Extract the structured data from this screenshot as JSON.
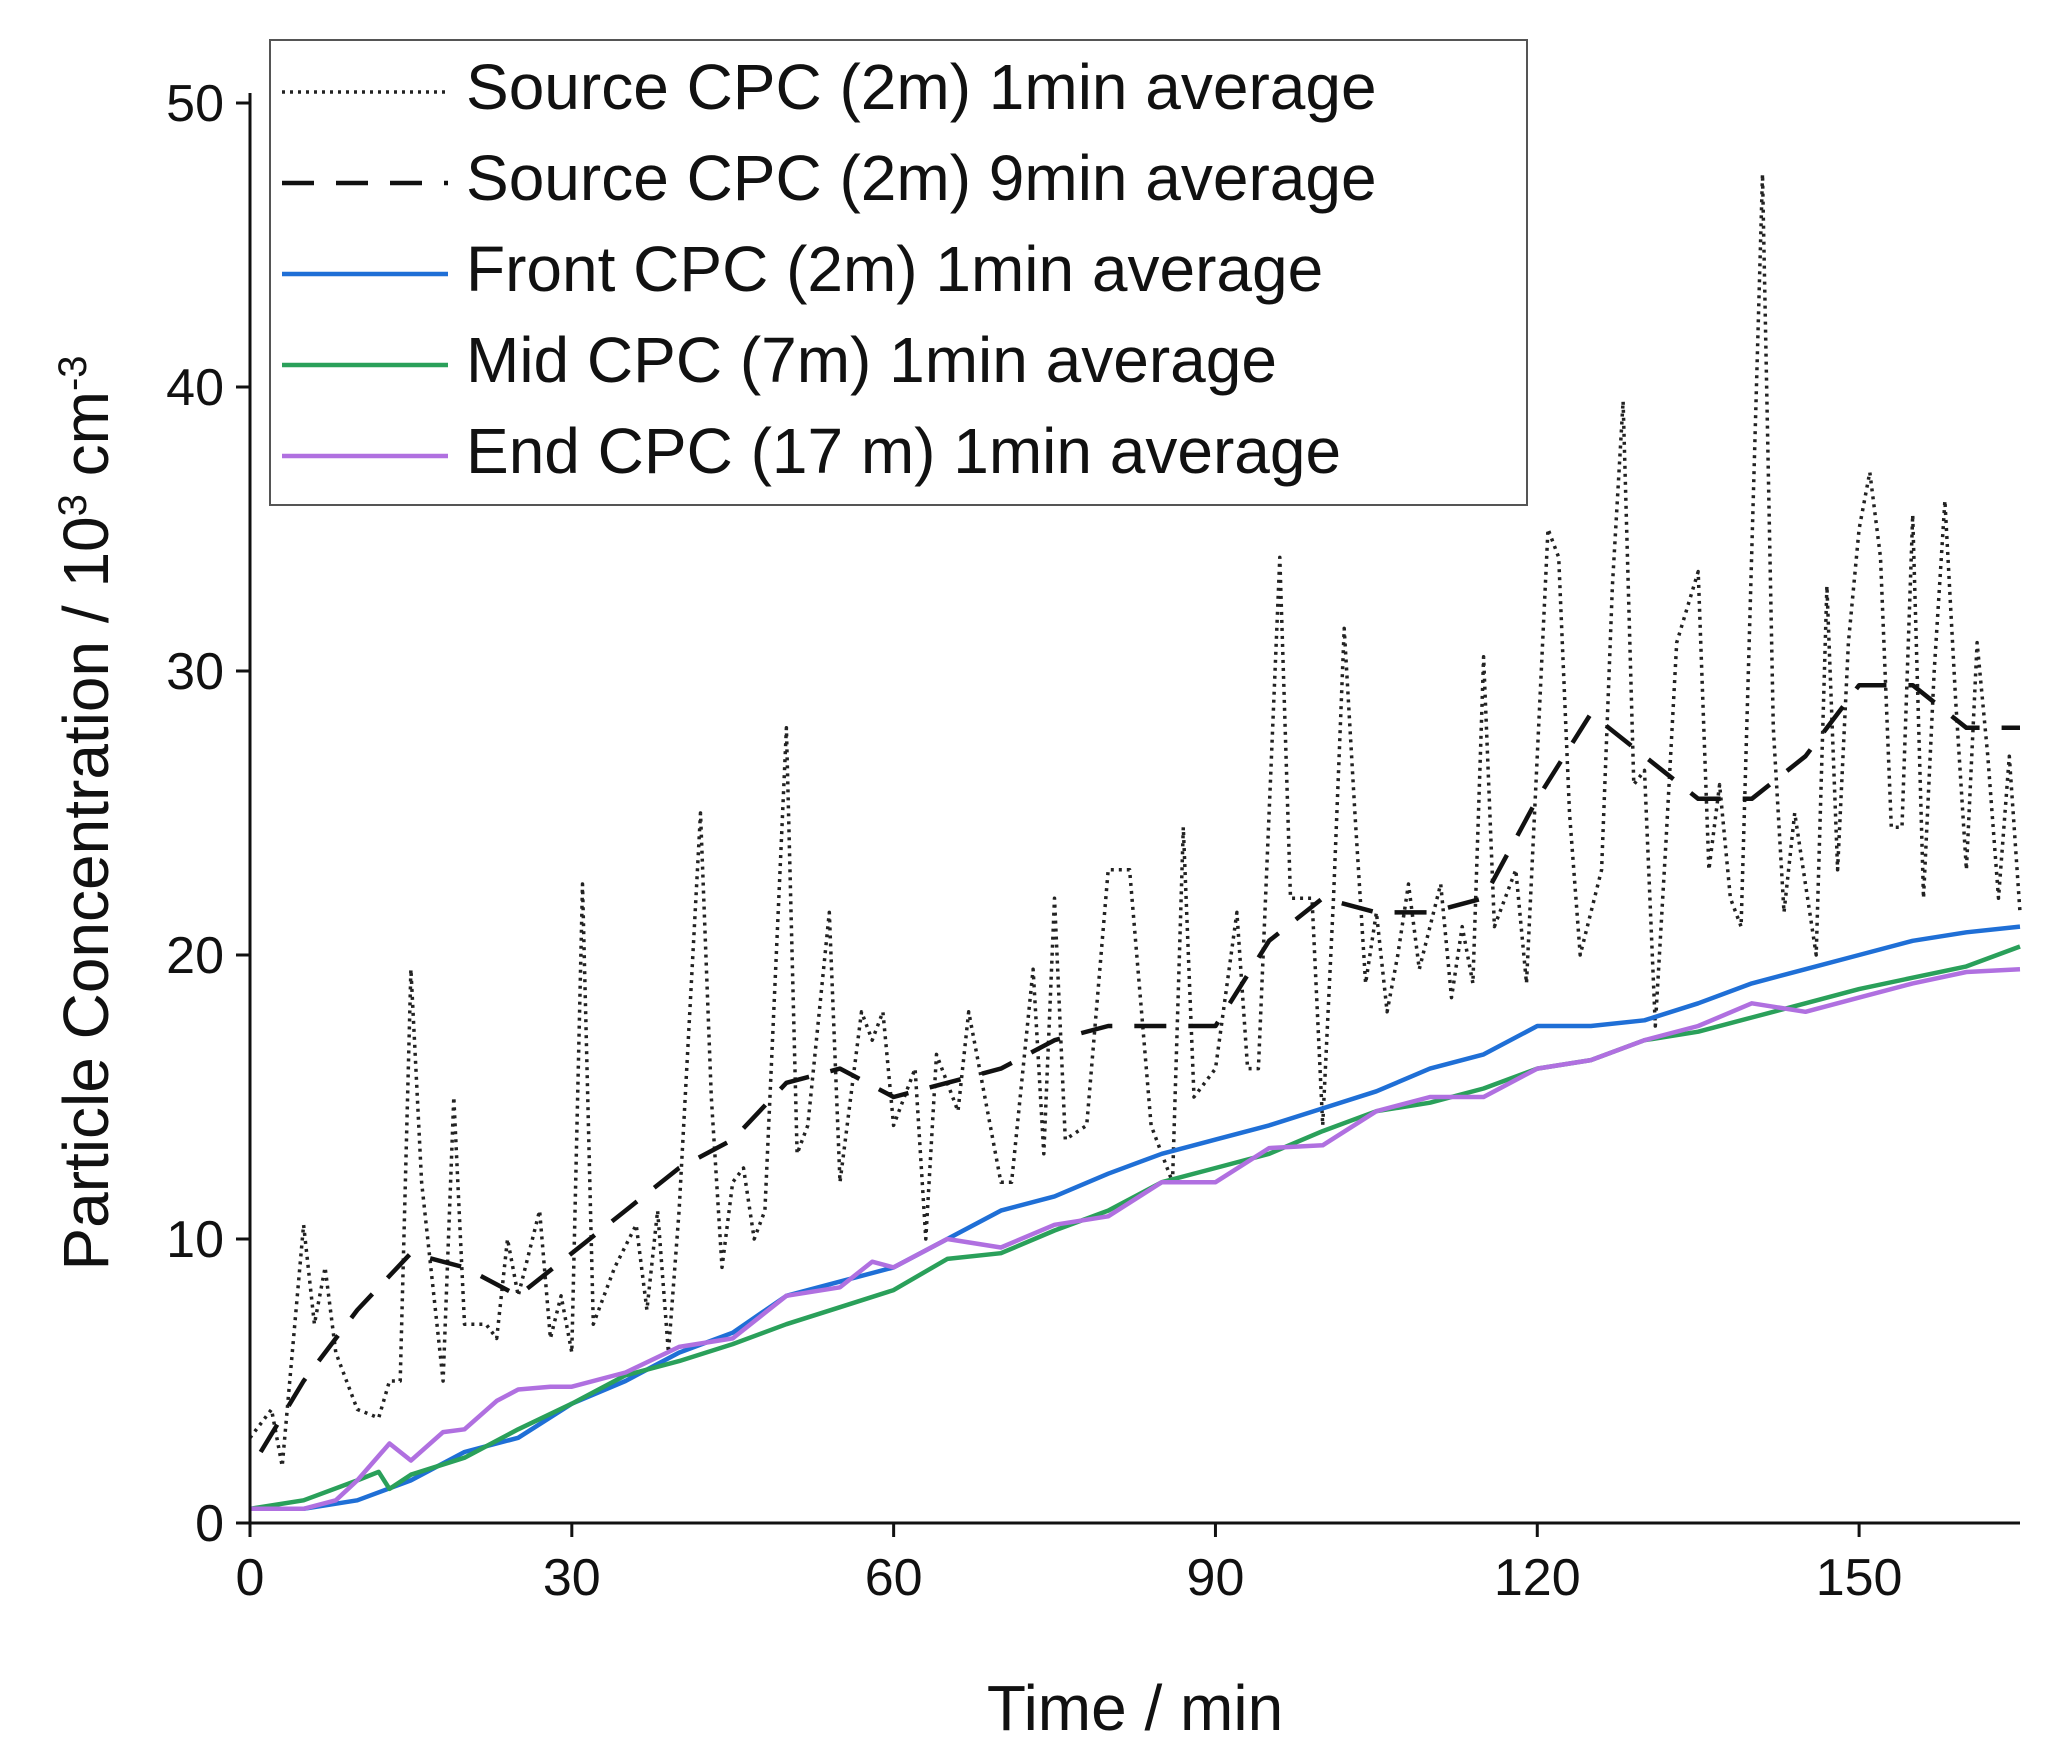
{
  "chart_data": {
    "type": "line",
    "xlabel": "Time / min",
    "ylabel": [
      "Particle Concentration / 10",
      "3",
      " cm",
      "-3"
    ],
    "xlim": [
      0,
      165
    ],
    "xticks": [
      0,
      30,
      60,
      90,
      120,
      150
    ],
    "ylim": [
      0,
      50
    ],
    "yticks": [
      0,
      10,
      20,
      30,
      40,
      50
    ],
    "legend": "top-left",
    "series": [
      {
        "name": "Source CPC (2m) 1min average",
        "color": "#222222",
        "style": "dotted",
        "x": [
          0,
          2,
          3,
          5,
          6,
          7,
          8,
          10,
          12,
          13,
          14,
          15,
          16,
          18,
          19,
          20,
          22,
          23,
          24,
          25,
          27,
          28,
          29,
          30,
          31,
          32,
          34,
          36,
          37,
          38,
          39,
          40,
          42,
          43,
          44,
          45,
          46,
          47,
          48,
          50,
          51,
          52,
          54,
          55,
          57,
          58,
          59,
          60,
          62,
          63,
          64,
          66,
          67,
          68,
          70,
          71,
          73,
          74,
          75,
          76,
          78,
          80,
          81,
          82,
          84,
          86,
          87,
          88,
          90,
          92,
          93,
          94,
          95,
          96,
          97,
          99,
          100,
          101,
          102,
          103,
          104,
          105,
          106,
          107,
          108,
          109,
          111,
          112,
          113,
          114,
          115,
          116,
          118,
          119,
          121,
          122,
          123,
          124,
          126,
          127,
          128,
          129,
          130,
          131,
          132,
          133,
          135,
          136,
          137,
          138,
          139,
          141,
          142,
          143,
          144,
          146,
          147,
          148,
          149,
          150,
          151,
          152,
          153,
          154,
          155,
          156,
          157,
          158,
          159,
          160,
          161,
          162,
          163,
          164,
          165
        ],
        "values": [
          3,
          4,
          2,
          10.5,
          7,
          9,
          6,
          4,
          3.7,
          5,
          5,
          19.5,
          12,
          5,
          15,
          7,
          7,
          6.5,
          10,
          8,
          11,
          6.5,
          8,
          6,
          22.5,
          7,
          9,
          10.5,
          7.5,
          11,
          6,
          11,
          25,
          15,
          9,
          12,
          12.5,
          10,
          11,
          28,
          13,
          14,
          21.5,
          12,
          18,
          17,
          18,
          14,
          16,
          10,
          16.5,
          14.5,
          18,
          16,
          12,
          12,
          19.5,
          13,
          22,
          13.5,
          14,
          23,
          23,
          23,
          14,
          12,
          24.5,
          15,
          16,
          21.5,
          16,
          16,
          25,
          34,
          22,
          22,
          14,
          22,
          31.5,
          25,
          19,
          21.5,
          18,
          20,
          22.5,
          19.5,
          22.5,
          18.5,
          21,
          19,
          30.5,
          21,
          23,
          19,
          35,
          34,
          25,
          20,
          23,
          33,
          39.5,
          26,
          26.5,
          17.5,
          24,
          31,
          33.5,
          23,
          26,
          22,
          21,
          47.5,
          28,
          21.5,
          25,
          20,
          33,
          23,
          31,
          35,
          37,
          34,
          24.5,
          24.5,
          35.5,
          22,
          30,
          36,
          29,
          23,
          31,
          27,
          22,
          27,
          21.5
        ]
      },
      {
        "name": "Source CPC (2m) 9min average",
        "color": "#111111",
        "style": "dashed",
        "x": [
          1,
          5,
          10,
          15,
          20,
          25,
          30,
          35,
          40,
          45,
          50,
          55,
          60,
          65,
          70,
          75,
          80,
          85,
          90,
          95,
          100,
          105,
          110,
          115,
          120,
          125,
          130,
          135,
          140,
          145,
          150,
          155,
          160,
          165
        ],
        "values": [
          2.5,
          5,
          7.5,
          9.5,
          9,
          8,
          9.5,
          11,
          12.5,
          13.5,
          15.5,
          16,
          15,
          15.5,
          16,
          17,
          17.5,
          17.5,
          17.5,
          20.5,
          22,
          21.5,
          21.5,
          22,
          25.5,
          28.5,
          27,
          25.5,
          25.5,
          27,
          29.5,
          29.5,
          28,
          28
        ]
      },
      {
        "name": "Front CPC (2m) 1min average",
        "color": "#1f6fd6",
        "style": "solid",
        "x": [
          0,
          5,
          10,
          15,
          20,
          25,
          30,
          35,
          40,
          45,
          50,
          55,
          60,
          65,
          70,
          75,
          80,
          85,
          90,
          95,
          100,
          105,
          110,
          115,
          120,
          125,
          130,
          135,
          140,
          145,
          150,
          155,
          160,
          165
        ],
        "values": [
          0.5,
          0.5,
          0.8,
          1.5,
          2.5,
          3,
          4.2,
          5,
          6,
          6.7,
          8,
          8.5,
          9,
          10,
          11,
          11.5,
          12.3,
          13,
          13.5,
          14,
          14.6,
          15.2,
          16,
          16.5,
          17.5,
          17.5,
          17.7,
          18.3,
          19,
          19.5,
          20,
          20.5,
          20.8,
          21
        ]
      },
      {
        "name": "Mid CPC (7m) 1min average",
        "color": "#2aa05a",
        "style": "solid",
        "x": [
          0,
          5,
          10,
          12,
          13,
          15,
          20,
          25,
          30,
          35,
          40,
          45,
          50,
          55,
          60,
          65,
          70,
          75,
          80,
          85,
          90,
          95,
          100,
          105,
          110,
          115,
          120,
          125,
          130,
          135,
          140,
          145,
          150,
          155,
          160,
          165
        ],
        "values": [
          0.5,
          0.8,
          1.5,
          1.8,
          1.2,
          1.7,
          2.3,
          3.3,
          4.2,
          5.2,
          5.7,
          6.3,
          7,
          7.6,
          8.2,
          9.3,
          9.5,
          10.3,
          11,
          12,
          12.5,
          13,
          13.8,
          14.5,
          14.8,
          15.3,
          16,
          16.3,
          17,
          17.3,
          17.8,
          18.3,
          18.8,
          19.2,
          19.6,
          20.3
        ]
      },
      {
        "name": "End CPC (17 m) 1min average",
        "color": "#b070e0",
        "style": "solid",
        "x": [
          0,
          5,
          8,
          10,
          13,
          15,
          18,
          20,
          23,
          25,
          28,
          30,
          35,
          40,
          45,
          50,
          55,
          58,
          60,
          65,
          70,
          75,
          80,
          85,
          90,
          95,
          100,
          105,
          110,
          115,
          120,
          125,
          130,
          135,
          140,
          145,
          150,
          155,
          160,
          165
        ],
        "values": [
          0.5,
          0.5,
          0.8,
          1.5,
          2.8,
          2.2,
          3.2,
          3.3,
          4.3,
          4.7,
          4.8,
          4.8,
          5.3,
          6.2,
          6.5,
          8,
          8.3,
          9.2,
          9,
          10,
          9.7,
          10.5,
          10.8,
          12,
          12,
          13.2,
          13.3,
          14.5,
          15,
          15,
          16,
          16.3,
          17,
          17.5,
          18.3,
          18,
          18.5,
          19,
          19.4,
          19.5
        ]
      }
    ]
  }
}
